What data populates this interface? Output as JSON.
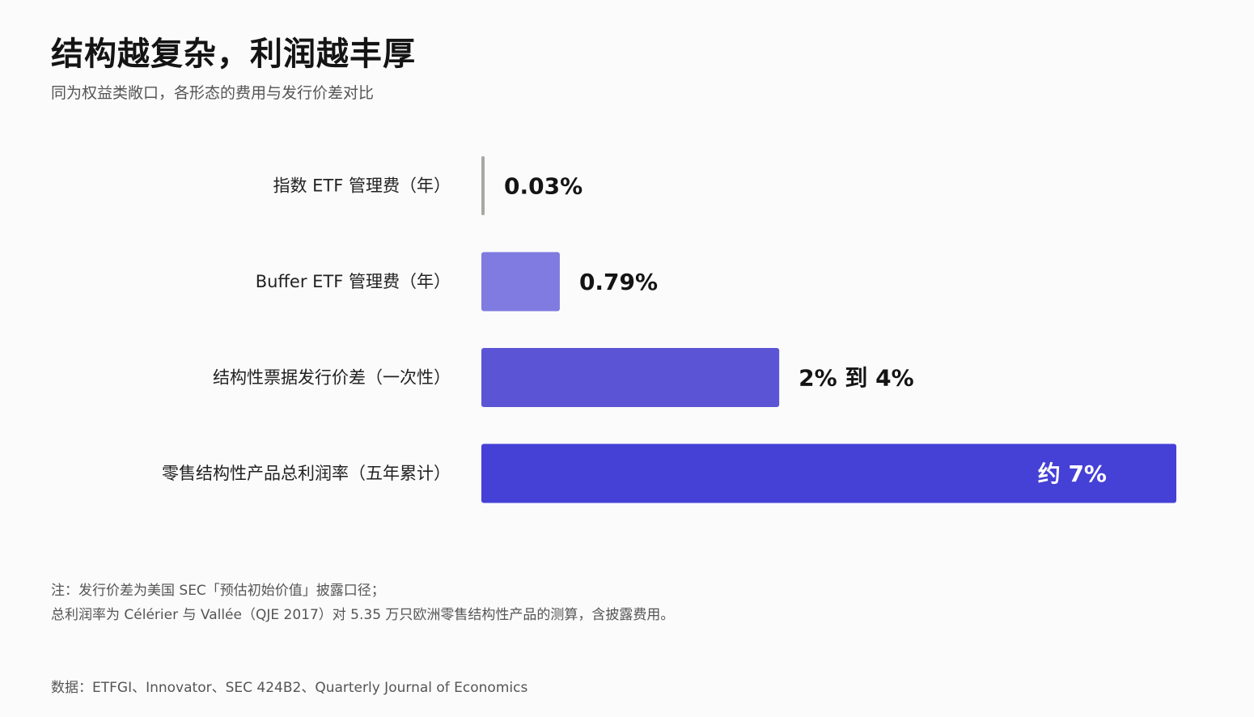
{
  "header": {
    "title": "结构越复杂，利润越丰厚",
    "subtitle": "同为权益类敞口，各形态的费用与发行价差对比"
  },
  "chart_data": {
    "type": "bar",
    "orientation": "horizontal",
    "categories": [
      "指数 ETF 管理费（年）",
      "Buffer ETF 管理费（年）",
      "结构性票据发行价差（一次性）",
      "零售结构性产品总利润率（五年累计）"
    ],
    "values": [
      0.03,
      0.79,
      3,
      7
    ],
    "value_labels": [
      "0.03%",
      "0.79%",
      "2% 到 4%",
      "约 7%"
    ],
    "unit": "%",
    "bar_colors": [
      "#a8a8a2",
      "#7f7be0",
      "#5b55d6",
      "#4540d6"
    ],
    "grid": false,
    "legend": "none"
  },
  "footer": {
    "note_line1": "注：发行价差为美国 SEC「预估初始价值」披露口径；",
    "note_line2": "总利润率为 Célérier 与 Vallée（QJE 2017）对 5.35 万只欧洲零售结构性产品的测算，含披露费用。",
    "source": "数据：ETFGI、Innovator、SEC 424B2、Quarterly Journal of Economics"
  }
}
